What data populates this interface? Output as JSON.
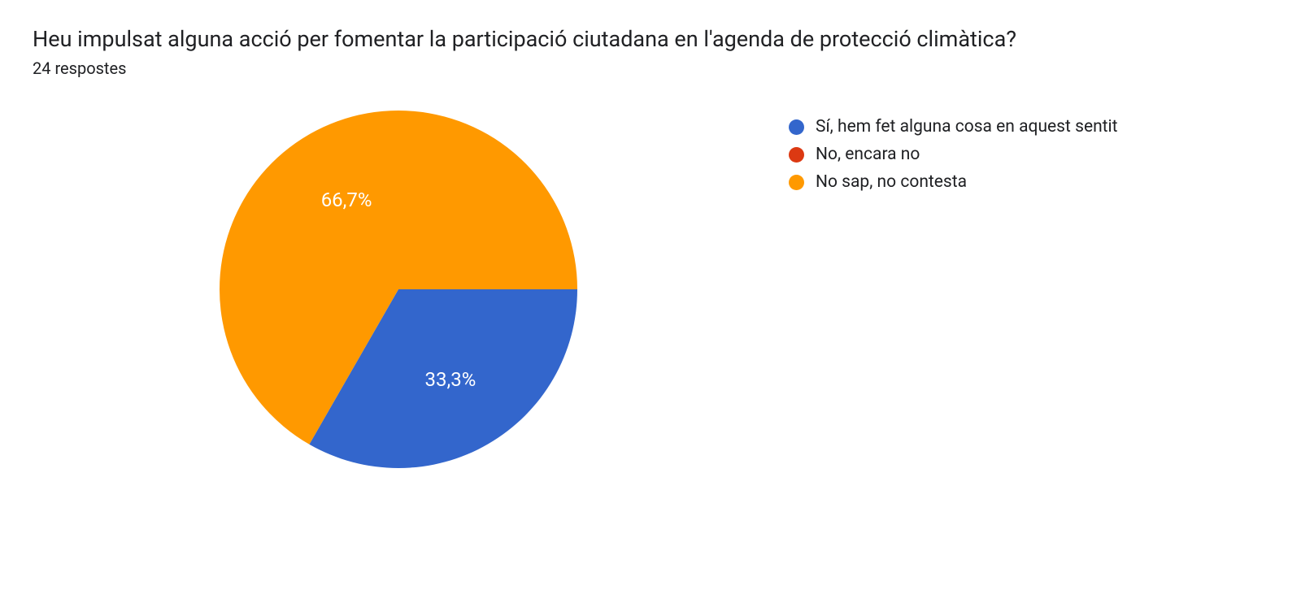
{
  "title": "Heu impulsat alguna acció per fomentar la participació ciutadana en l'agenda de protecció climàtica?",
  "subtitle": "24 respostes",
  "chart": {
    "type": "pie",
    "background_color": "#ffffff",
    "label_color": "#ffffff",
    "label_fontsize": 24,
    "slices": [
      {
        "name": "Sí, hem fet alguna cosa en aquest sentit",
        "value": 33.3,
        "label": "33,3%",
        "color": "#3366cc"
      },
      {
        "name": "No, encara no",
        "value": 0,
        "label": "",
        "color": "#dc3912"
      },
      {
        "name": "No sap, no contesta",
        "value": 66.7,
        "label": "66,7%",
        "color": "#ff9900"
      }
    ]
  },
  "legend": {
    "items": [
      {
        "label": "Sí, hem fet alguna cosa en aquest sentit",
        "color": "#3366cc"
      },
      {
        "label": "No, encara no",
        "color": "#dc3912"
      },
      {
        "label": "No sap, no contesta",
        "color": "#ff9900"
      }
    ]
  }
}
